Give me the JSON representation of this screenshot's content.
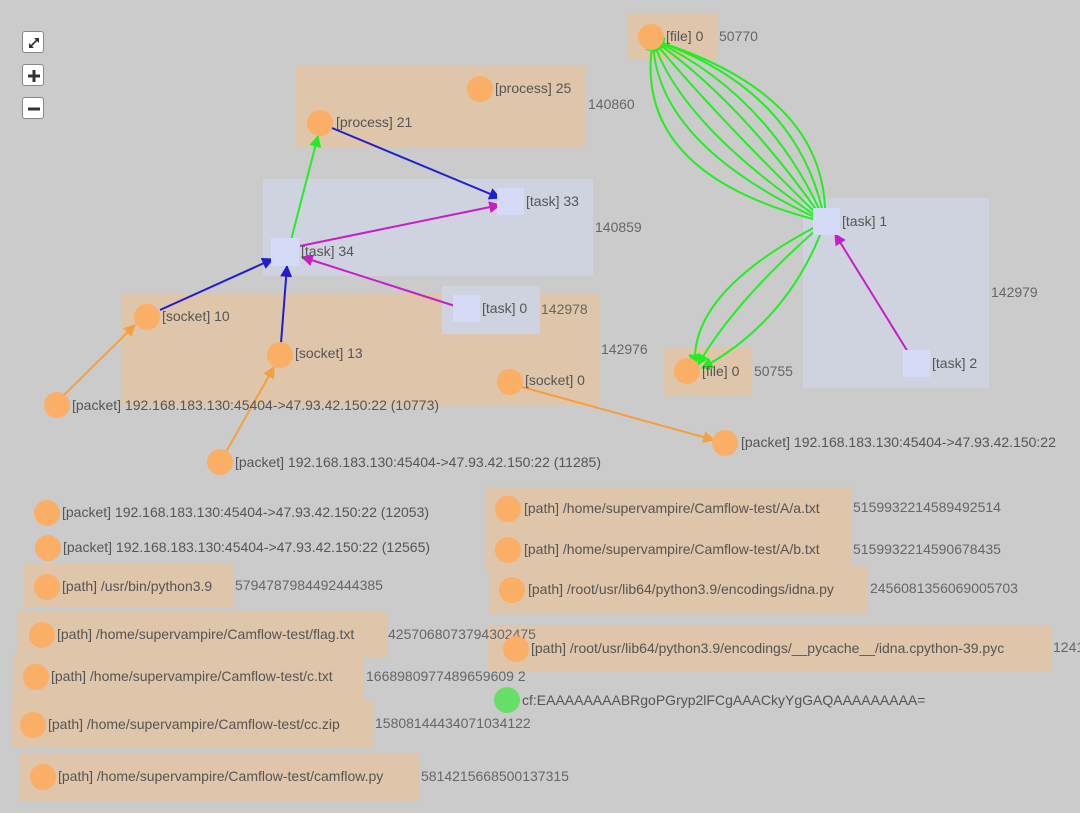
{
  "controls": {
    "fit_icon": "expand-icon",
    "zoom_in_icon": "plus-icon",
    "zoom_out_icon": "minus-icon"
  },
  "colors": {
    "background": "#cbcbcb",
    "group_orange": "#dfc5a9",
    "group_blue": "#cfd3df",
    "entity_node": "#fbae66",
    "activity_node": "#d5dbf7",
    "agent_node": "#66e066",
    "edge_green": "#22ee22",
    "edge_blue": "#1e1ed0",
    "edge_purple": "#c71ec7",
    "edge_orange": "#f5a040"
  },
  "groups": {
    "g140860": "140860",
    "g140859": "140859",
    "g142978": "142978",
    "g142976": "142976",
    "g50770": "50770",
    "g50755": "50755",
    "g142979": "142979",
    "p515_a": "5159932214589492514",
    "p515_b": "5159932214590678435",
    "p245": "2456081356069005703",
    "p124": "1241",
    "p579": "5794787984492444385",
    "p425": "4257068073794302475",
    "p166": "1668980977489659609 2",
    "p158": "15808144434071034122",
    "p581": "5814215668500137315"
  },
  "nodes": {
    "file0_top": "[file] 0",
    "process25": "[process] 25",
    "process21": "[process] 21",
    "task33": "[task] 33",
    "task1": "[task] 1",
    "task34": "[task] 34",
    "socket10": "[socket] 10",
    "task0": "[task] 0",
    "socket13": "[socket] 13",
    "socket0": "[socket] 0",
    "file0_low": "[file] 0",
    "task2": "[task] 2",
    "pkt10773": "[packet] 192.168.183.130:45404->47.93.42.150:22 (10773)",
    "pkt_right": "[packet] 192.168.183.130:45404->47.93.42.150:22",
    "pkt11285": "[packet] 192.168.183.130:45404->47.93.42.150:22 (11285)",
    "pkt12053": "[packet] 192.168.183.130:45404->47.93.42.150:22 (12053)",
    "pkt12565": "[packet] 192.168.183.130:45404->47.93.42.150:22 (12565)",
    "path_a": "[path] /home/supervampire/Camflow-test/A/a.txt",
    "path_b": "[path] /home/supervampire/Camflow-test/A/b.txt",
    "path_python": "[path] /usr/bin/python3.9",
    "path_idna": "[path] /root/usr/lib64/python3.9/encodings/idna.py",
    "path_flag": "[path] /home/supervampire/Camflow-test/flag.txt",
    "path_pycache": "[path] /root/usr/lib64/python3.9/encodings/__pycache__/idna.cpython-39.pyc",
    "path_c": "[path] /home/supervampire/Camflow-test/c.txt",
    "agent_cf": "cf:EAAAAAAAABRgoPGryp2lFCgAAACkyYgGAQAAAAAAAAA=",
    "path_cc": "[path] /home/supervampire/Camflow-test/cc.zip",
    "path_camflow": "[path] /home/supervampire/Camflow-test/camflow.py"
  }
}
